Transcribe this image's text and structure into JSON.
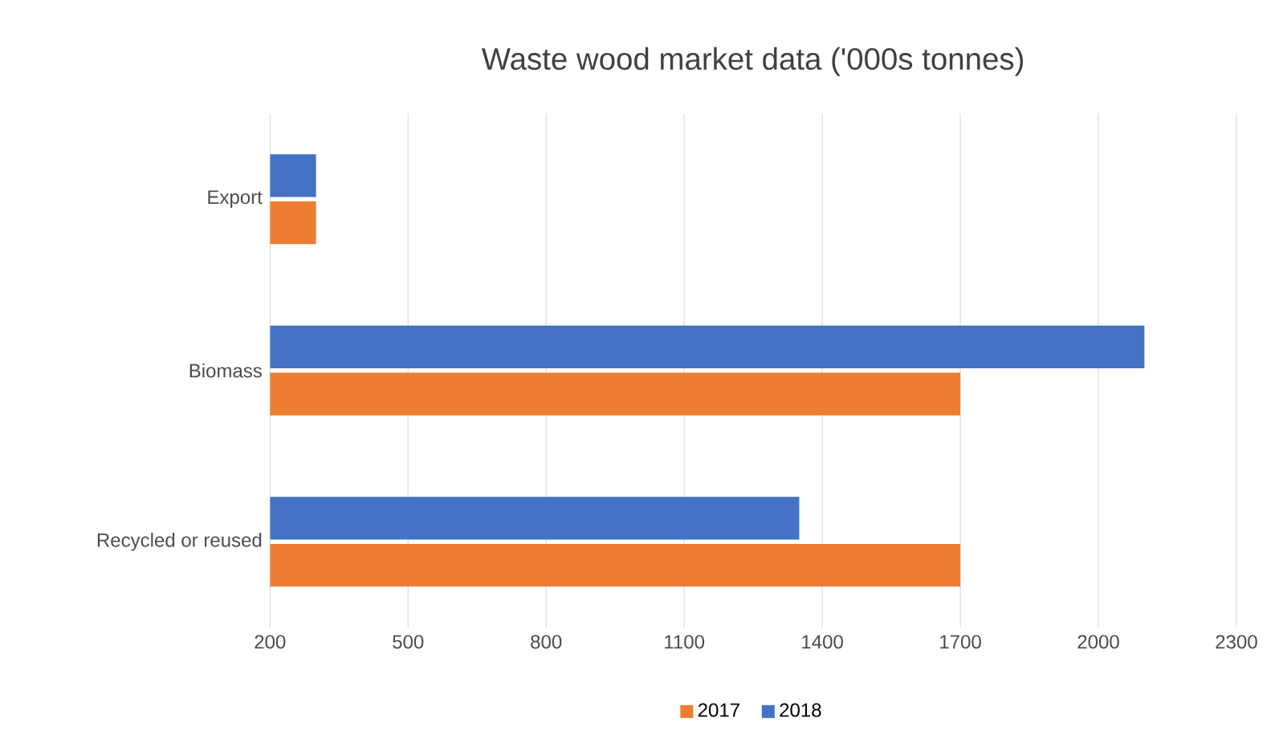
{
  "chart_data": {
    "type": "bar",
    "orientation": "horizontal",
    "title": "Waste wood market data ('000s tonnes)",
    "categories": [
      "Export",
      "Biomass",
      "Recycled or reused"
    ],
    "series": [
      {
        "name": "2017",
        "color": "#ed7d31",
        "values": [
          300,
          1700,
          1700
        ]
      },
      {
        "name": "2018",
        "color": "#4472c4",
        "values": [
          300,
          2100,
          1350
        ]
      }
    ],
    "xlim": [
      200,
      2300
    ],
    "xticks": [
      200,
      500,
      800,
      1100,
      1400,
      1700,
      2000,
      2300
    ],
    "grid": "x",
    "legend": "bottom"
  }
}
